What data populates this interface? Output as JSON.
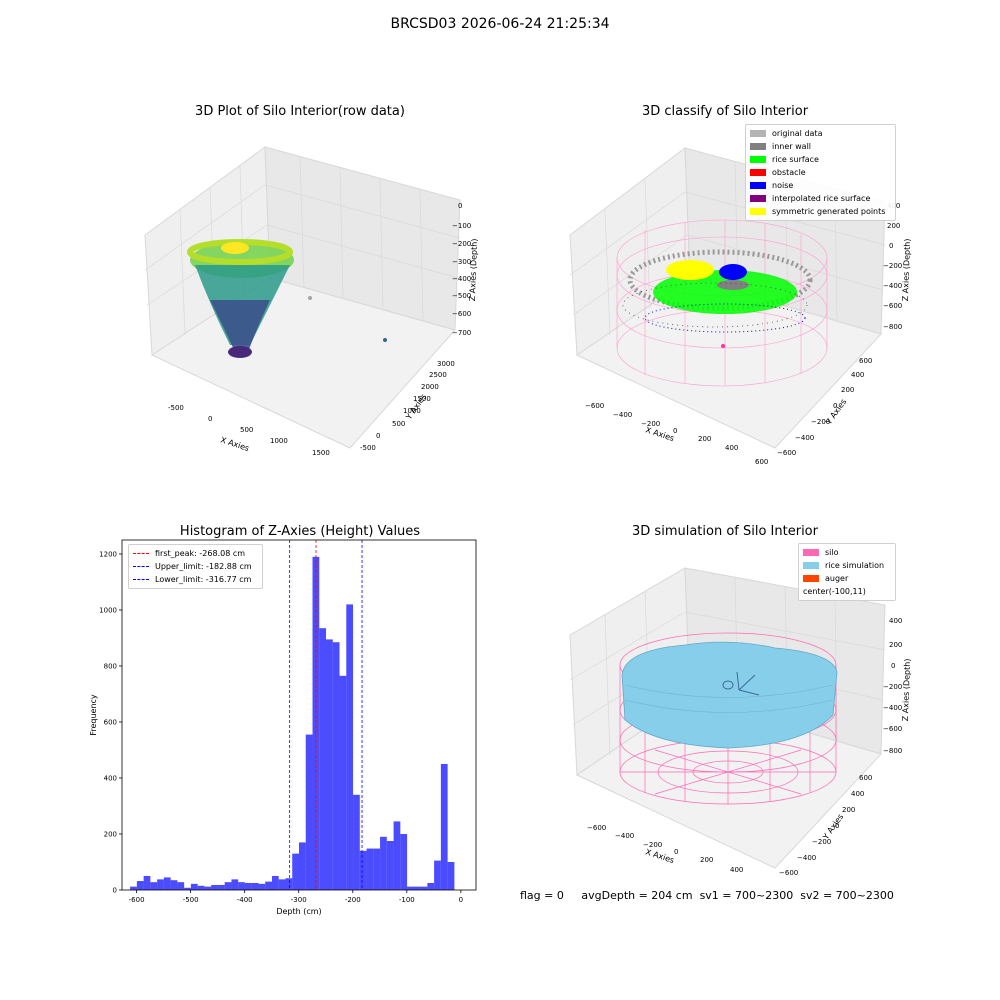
{
  "figure_title": "BRCSD03 2026-06-24 21:25:34",
  "panels": {
    "raw": {
      "title": "3D Plot of Silo Interior(row data)",
      "x_label": "X Axies",
      "y_label": "Y Axies",
      "z_label": "Z Axies (Depth)",
      "x_ticks": [
        "-500",
        "0",
        "500",
        "1000",
        "1500"
      ],
      "y_ticks": [
        "-500",
        "0",
        "500",
        "1000",
        "1500",
        "2000",
        "2500",
        "3000"
      ],
      "z_ticks": [
        "0",
        "−100",
        "−200",
        "−300",
        "−400",
        "−500",
        "−600",
        "−700"
      ]
    },
    "classify": {
      "title": "3D classify of Silo Interior",
      "x_label": "X Axies",
      "y_label": "Y Axies",
      "z_label": "Z Axies (Depth)",
      "x_ticks": [
        "−600",
        "−400",
        "−200",
        "0",
        "200",
        "400",
        "600"
      ],
      "y_ticks": [
        "−600",
        "−400",
        "−200",
        "0",
        "200",
        "400",
        "600"
      ],
      "z_ticks": [
        "200",
        "0",
        "−200",
        "−400",
        "−600",
        "−800"
      ],
      "z_top_tick": "400",
      "legend": [
        {
          "label": "original data",
          "color": "#b3b3b3"
        },
        {
          "label": "inner wall",
          "color": "#808080"
        },
        {
          "label": "rice surface",
          "color": "#00ff00"
        },
        {
          "label": "obstacle",
          "color": "#ff0000"
        },
        {
          "label": "noise",
          "color": "#0000ff"
        },
        {
          "label": "interpolated rice surface",
          "color": "#800080"
        },
        {
          "label": "symmetric generated points",
          "color": "#ffff00"
        }
      ]
    },
    "histogram": {
      "title": "Histogram of Z-Axies (Height) Values",
      "legend": [
        {
          "label": "first_peak: -268.08 cm",
          "color": "#ff0000"
        },
        {
          "label": "Upper_limit: -182.88 cm",
          "color": "#0000ff"
        },
        {
          "label": "Lower_limit: -316.77 cm",
          "color": "#0000ff"
        }
      ]
    },
    "simulation": {
      "title": "3D simulation of Silo Interior",
      "x_label": "X Axies",
      "y_label": "Y Axies",
      "z_label": "Z Axies (Depth)",
      "x_ticks": [
        "−600",
        "−400",
        "−200",
        "0",
        "200",
        "400"
      ],
      "y_ticks": [
        "−600",
        "−400",
        "−200",
        "0",
        "200",
        "400",
        "600"
      ],
      "z_ticks": [
        "400",
        "200",
        "0",
        "−200",
        "−400",
        "−600",
        "−800"
      ],
      "legend": [
        {
          "label": "silo",
          "color": "#ff69b4"
        },
        {
          "label": "rice simulation",
          "color": "#87ceeb"
        },
        {
          "label": "auger",
          "color": "#ff4500"
        },
        {
          "label": "center(-100,11)",
          "color": ""
        }
      ]
    }
  },
  "status": {
    "flag": "flag = 0",
    "avg": "avgDepth = 204 cm",
    "sv1": "sv1 = 700~2300",
    "sv2": "sv2 = 700~2300"
  },
  "chart_data": {
    "type": "bar",
    "title": "Histogram of Z-Axies (Height) Values",
    "xlabel": "Depth (cm)",
    "ylabel": "Frequency",
    "xlim": [
      -627,
      28
    ],
    "ylim": [
      0,
      1250
    ],
    "x_ticks": [
      -600,
      -500,
      -400,
      -300,
      -200,
      -100,
      0
    ],
    "y_ticks": [
      0,
      200,
      400,
      600,
      800,
      1000,
      1200
    ],
    "bar_color": "#0000ff",
    "bin_start": -612,
    "bin_width": 12.5,
    "values": [
      12,
      32,
      50,
      28,
      38,
      45,
      35,
      28,
      8,
      22,
      15,
      12,
      18,
      18,
      28,
      38,
      28,
      25,
      25,
      22,
      30,
      50,
      38,
      42,
      130,
      170,
      555,
      1190,
      935,
      895,
      885,
      765,
      1020,
      340,
      140,
      148,
      148,
      190,
      175,
      245,
      200,
      12,
      12,
      12,
      25,
      105,
      450,
      100
    ],
    "vlines": [
      {
        "name": "first_peak",
        "value": -268.08,
        "color": "#ff0000"
      },
      {
        "name": "Upper_limit",
        "value": -182.88,
        "color": "#0000ff"
      },
      {
        "name": "Lower_limit",
        "value": -316.77,
        "color": "#0000ff"
      }
    ]
  }
}
